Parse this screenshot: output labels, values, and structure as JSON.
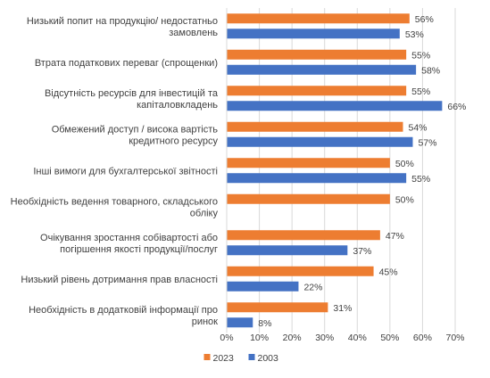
{
  "chart_data": {
    "type": "bar",
    "orientation": "horizontal",
    "categories": [
      [
        "Низький попит на продукцію/ недостатньо",
        "замовлень"
      ],
      [
        "Втрата податкових переваг (спрощенки)"
      ],
      [
        "Відсутність ресурсів для інвестицій та",
        "капіталовкладень"
      ],
      [
        "Обмежений доступ / висока вартість",
        "кредитного ресурсу"
      ],
      [
        "Інші вимоги для бухгалтерської звітності"
      ],
      [
        "Необхідність ведення товарного, складського",
        "обліку"
      ],
      [
        "Очікування зростання собівартості або",
        "погіршення якості продукції/послуг"
      ],
      [
        "Низький рівень дотримання прав власності"
      ],
      [
        "Необхідність в додатковій інформації про",
        "ринок"
      ]
    ],
    "series": [
      {
        "name": "2023",
        "color": "#ED7D31",
        "values": [
          56,
          55,
          55,
          54,
          50,
          50,
          47,
          45,
          31
        ]
      },
      {
        "name": "2003",
        "color": "#4472C4",
        "values": [
          53,
          58,
          66,
          57,
          55,
          null,
          37,
          22,
          8
        ]
      }
    ],
    "value_suffix": "%",
    "xlim": [
      0,
      70
    ],
    "xticks": [
      "0%",
      "10%",
      "20%",
      "30%",
      "40%",
      "50%",
      "60%",
      "70%"
    ],
    "grid": "vertical",
    "legend_position": "bottom"
  }
}
